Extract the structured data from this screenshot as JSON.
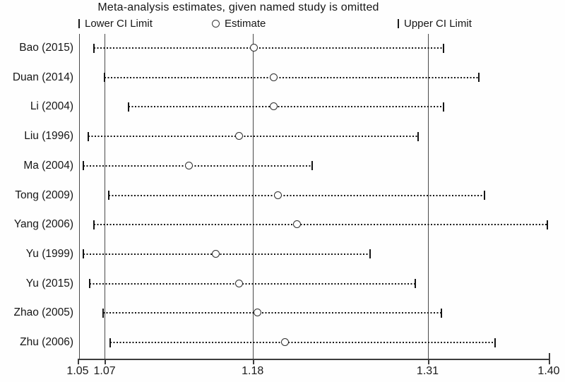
{
  "colors": {
    "ink": "#1a1a1a",
    "reference_line": "#4a4a4a",
    "background": "#fefefe"
  },
  "chart_data": {
    "type": "forest",
    "subtype": "leave-one-out-sensitivity",
    "title": "Meta-analysis estimates, given named study is omitted",
    "xlabel": "",
    "ylabel": "",
    "grid": false,
    "legend_position": "top",
    "legend": [
      {
        "marker": "vertical-bar",
        "label": "Lower CI Limit"
      },
      {
        "marker": "open-circle",
        "label": "Estimate"
      },
      {
        "marker": "vertical-bar",
        "label": "Upper CI Limit"
      }
    ],
    "x_axis": {
      "min": 1.05,
      "max": 1.4,
      "ticks": [
        1.05,
        1.07,
        1.18,
        1.31,
        1.4
      ],
      "tick_labels": [
        "1.05",
        "1.07",
        "1.18",
        "1.31",
        "1.40"
      ]
    },
    "reference_lines": {
      "overall_lower": 1.07,
      "overall_estimate": 1.18,
      "overall_upper": 1.31
    },
    "studies": [
      {
        "label": "Bao (2015)",
        "lower": 1.062,
        "estimate": 1.181,
        "upper": 1.322
      },
      {
        "label": "Duan (2014)",
        "lower": 1.07,
        "estimate": 1.196,
        "upper": 1.348
      },
      {
        "label": "Li (2004)",
        "lower": 1.088,
        "estimate": 1.196,
        "upper": 1.322
      },
      {
        "label": "Liu (1996)",
        "lower": 1.058,
        "estimate": 1.17,
        "upper": 1.303
      },
      {
        "label": "Ma (2004)",
        "lower": 1.054,
        "estimate": 1.133,
        "upper": 1.224
      },
      {
        "label": "Tong (2009)",
        "lower": 1.073,
        "estimate": 1.199,
        "upper": 1.352
      },
      {
        "label": "Yang (2006)",
        "lower": 1.062,
        "estimate": 1.213,
        "upper": 1.399
      },
      {
        "label": "Yu (1999)",
        "lower": 1.054,
        "estimate": 1.153,
        "upper": 1.267
      },
      {
        "label": "Yu (2015)",
        "lower": 1.059,
        "estimate": 1.17,
        "upper": 1.301
      },
      {
        "label": "Zhao (2005)",
        "lower": 1.069,
        "estimate": 1.184,
        "upper": 1.32
      },
      {
        "label": "Zhu (2006)",
        "lower": 1.074,
        "estimate": 1.204,
        "upper": 1.36
      }
    ]
  }
}
